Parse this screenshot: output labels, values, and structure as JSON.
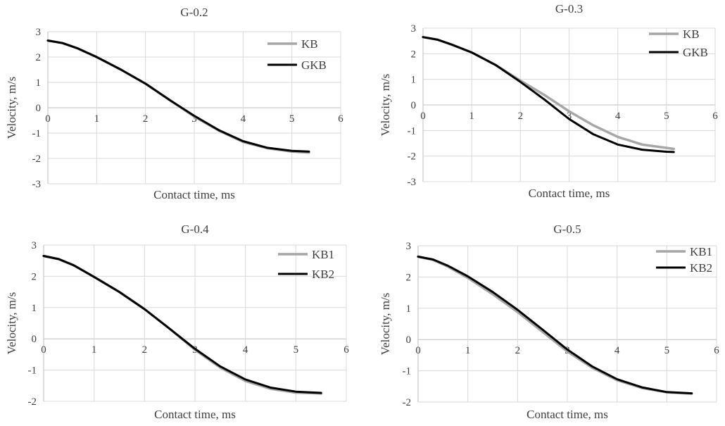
{
  "chart_data": [
    {
      "type": "line",
      "title": "G-0.2",
      "xlabel": "Contact time, ms",
      "ylabel": "Velocity, m/s",
      "xlim": [
        0,
        6
      ],
      "ylim": [
        -3,
        3
      ],
      "x_ticks": [
        "0",
        "1",
        "2",
        "3",
        "4",
        "5",
        "6"
      ],
      "y_ticks": [
        "-3",
        "-2",
        "-1",
        "0",
        "1",
        "2",
        "3"
      ],
      "legend_position": "top-right",
      "series": [
        {
          "name": "KB",
          "color": "#a6a6a6",
          "x": [
            0,
            0.3,
            0.6,
            1.0,
            1.5,
            2.0,
            2.5,
            3.0,
            3.5,
            4.0,
            4.5,
            5.0,
            5.35
          ],
          "y": [
            2.65,
            2.55,
            2.35,
            2.0,
            1.5,
            0.95,
            0.3,
            -0.35,
            -0.9,
            -1.35,
            -1.6,
            -1.73,
            -1.77
          ]
        },
        {
          "name": "GKB",
          "color": "#000000",
          "x": [
            0,
            0.3,
            0.6,
            1.0,
            1.5,
            2.0,
            2.5,
            3.0,
            3.5,
            4.0,
            4.5,
            5.0,
            5.35
          ],
          "y": [
            2.65,
            2.55,
            2.35,
            2.0,
            1.5,
            0.95,
            0.3,
            -0.32,
            -0.88,
            -1.32,
            -1.58,
            -1.7,
            -1.73
          ]
        }
      ]
    },
    {
      "type": "line",
      "title": "G-0.3",
      "xlabel": "Contact time, ms",
      "ylabel": "Velocity, m/s",
      "xlim": [
        0,
        6
      ],
      "ylim": [
        -3,
        3
      ],
      "x_ticks": [
        "0",
        "1",
        "2",
        "3",
        "4",
        "5",
        "6"
      ],
      "y_ticks": [
        "-3",
        "-2",
        "-1",
        "0",
        "1",
        "2",
        "3"
      ],
      "legend_position": "top-right",
      "series": [
        {
          "name": "KB",
          "color": "#a6a6a6",
          "x": [
            0,
            0.3,
            0.6,
            1.0,
            1.5,
            2.0,
            2.5,
            3.0,
            3.5,
            4.0,
            4.5,
            5.0,
            5.15
          ],
          "y": [
            2.65,
            2.55,
            2.35,
            2.05,
            1.55,
            0.95,
            0.38,
            -0.25,
            -0.8,
            -1.25,
            -1.55,
            -1.68,
            -1.72
          ]
        },
        {
          "name": "GKB",
          "color": "#000000",
          "x": [
            0,
            0.3,
            0.6,
            1.0,
            1.5,
            2.0,
            2.5,
            3.0,
            3.5,
            4.0,
            4.5,
            5.0,
            5.15
          ],
          "y": [
            2.65,
            2.55,
            2.35,
            2.05,
            1.55,
            0.9,
            0.2,
            -0.55,
            -1.15,
            -1.55,
            -1.75,
            -1.83,
            -1.84
          ]
        }
      ]
    },
    {
      "type": "line",
      "title": "G-0.4",
      "xlabel": "Contact time, ms",
      "ylabel": "Velocity, m/s",
      "xlim": [
        0,
        6
      ],
      "ylim": [
        -2,
        3
      ],
      "x_ticks": [
        "0",
        "1",
        "2",
        "3",
        "4",
        "5",
        "6"
      ],
      "y_ticks": [
        "-2",
        "-1",
        "0",
        "1",
        "2",
        "3"
      ],
      "legend_position": "top-right",
      "series": [
        {
          "name": "KB1",
          "color": "#a6a6a6",
          "x": [
            0,
            0.3,
            0.6,
            1.0,
            1.5,
            2.0,
            2.5,
            3.0,
            3.5,
            4.0,
            4.5,
            5.0,
            5.5
          ],
          "y": [
            2.65,
            2.55,
            2.35,
            1.98,
            1.5,
            0.95,
            0.32,
            -0.35,
            -0.92,
            -1.35,
            -1.6,
            -1.72,
            -1.75
          ]
        },
        {
          "name": "KB2",
          "color": "#000000",
          "x": [
            0,
            0.3,
            0.6,
            1.0,
            1.5,
            2.0,
            2.5,
            3.0,
            3.5,
            4.0,
            4.5,
            5.0,
            5.5
          ],
          "y": [
            2.65,
            2.55,
            2.35,
            1.98,
            1.5,
            0.95,
            0.32,
            -0.32,
            -0.88,
            -1.3,
            -1.56,
            -1.69,
            -1.73
          ]
        }
      ]
    },
    {
      "type": "line",
      "title": "G-0.5",
      "xlabel": "Contact time, ms",
      "ylabel": "Velocity, m/s",
      "xlim": [
        0,
        6
      ],
      "ylim": [
        -2,
        3
      ],
      "x_ticks": [
        "0",
        "1",
        "2",
        "3",
        "4",
        "5",
        "6"
      ],
      "y_ticks": [
        "-2",
        "-1",
        "0",
        "1",
        "2",
        "3"
      ],
      "legend_position": "top-right",
      "series": [
        {
          "name": "KB1",
          "color": "#a6a6a6",
          "x": [
            0,
            0.3,
            0.6,
            1.0,
            1.5,
            2.0,
            2.5,
            3.0,
            3.5,
            4.0,
            4.5,
            5.0,
            5.5
          ],
          "y": [
            2.65,
            2.55,
            2.33,
            1.97,
            1.45,
            0.88,
            0.25,
            -0.38,
            -0.9,
            -1.3,
            -1.55,
            -1.69,
            -1.73
          ]
        },
        {
          "name": "KB2",
          "color": "#000000",
          "x": [
            0,
            0.3,
            0.6,
            1.0,
            1.5,
            2.0,
            2.5,
            3.0,
            3.5,
            4.0,
            4.5,
            5.0,
            5.5
          ],
          "y": [
            2.65,
            2.56,
            2.36,
            2.02,
            1.52,
            0.95,
            0.32,
            -0.32,
            -0.86,
            -1.27,
            -1.53,
            -1.68,
            -1.72
          ]
        }
      ]
    }
  ]
}
